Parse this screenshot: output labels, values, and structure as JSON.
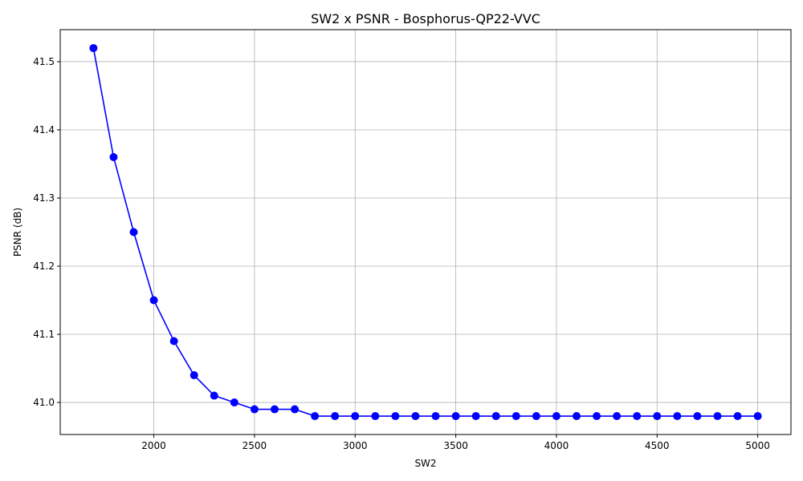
{
  "chart_data": {
    "type": "line",
    "title": "SW2 x PSNR - Bosphorus-QP22-VVC",
    "xlabel": "SW2",
    "ylabel": "PSNR (dB)",
    "xlim": [
      1535,
      5165
    ],
    "ylim": [
      40.953,
      41.547
    ],
    "x_ticks": [
      2000,
      2500,
      3000,
      3500,
      4000,
      4500,
      5000
    ],
    "y_ticks": [
      41.0,
      41.1,
      41.2,
      41.3,
      41.4,
      41.5
    ],
    "x_tick_labels": [
      "2000",
      "2500",
      "3000",
      "3500",
      "4000",
      "4500",
      "5000"
    ],
    "y_tick_labels": [
      "41.0",
      "41.1",
      "41.2",
      "41.3",
      "41.4",
      "41.5"
    ],
    "grid": true,
    "series": [
      {
        "color": "#0000ff",
        "marker": "circle",
        "x": [
          1700,
          1800,
          1900,
          2000,
          2100,
          2200,
          2300,
          2400,
          2500,
          2600,
          2700,
          2800,
          2900,
          3000,
          3100,
          3200,
          3300,
          3400,
          3500,
          3600,
          3700,
          3800,
          3900,
          4000,
          4100,
          4200,
          4300,
          4400,
          4500,
          4600,
          4700,
          4800,
          4900,
          5000
        ],
        "y": [
          41.52,
          41.36,
          41.25,
          41.15,
          41.09,
          41.04,
          41.01,
          41.0,
          40.99,
          40.99,
          40.99,
          40.98,
          40.98,
          40.98,
          40.98,
          40.98,
          40.98,
          40.98,
          40.98,
          40.98,
          40.98,
          40.98,
          40.98,
          40.98,
          40.98,
          40.98,
          40.98,
          40.98,
          40.98,
          40.98,
          40.98,
          40.98,
          40.98,
          40.98
        ]
      }
    ]
  }
}
